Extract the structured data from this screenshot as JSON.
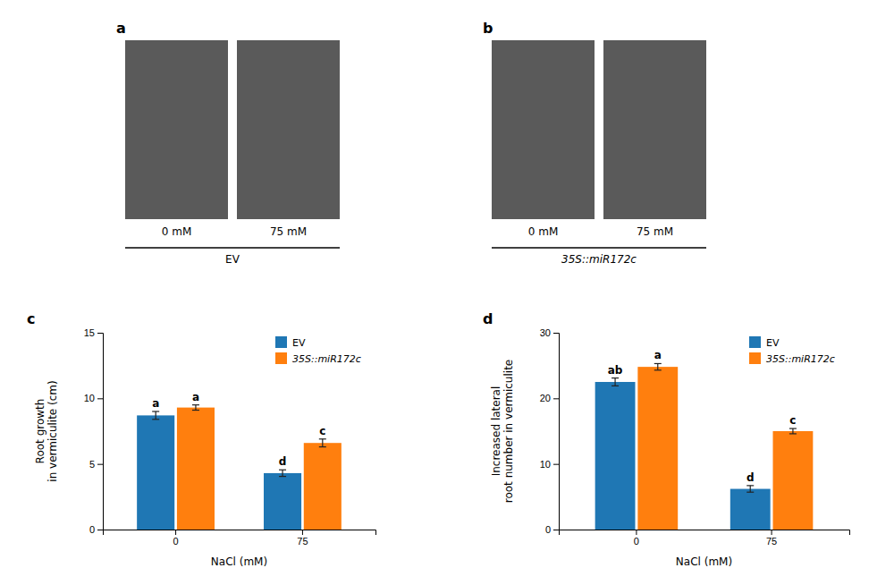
{
  "photo_panels": [
    {
      "label": "a",
      "photo_labels": [
        "0 mM",
        "75 mM"
      ],
      "group_label": "EV"
    },
    {
      "label": "b",
      "photo_labels": [
        "0 mM",
        "75 mM"
      ],
      "group_label": "35S::miR172c"
    }
  ],
  "chart_data": [
    {
      "type": "bar",
      "title": "c",
      "x_label": "NaCl (mM)",
      "y_label": "Root growth\nin vermiculite (cm)",
      "categories": [
        "0",
        "75"
      ],
      "series": [
        {
          "name": "EV",
          "values": [
            8.7,
            4.3
          ],
          "errors": [
            0.3,
            0.25
          ],
          "annotations": [
            "a",
            "d"
          ]
        },
        {
          "name": "35S::miR172c",
          "values": [
            9.3,
            6.6
          ],
          "errors": [
            0.2,
            0.3
          ],
          "annotations": [
            "a",
            "c"
          ]
        }
      ],
      "ylim": [
        0,
        15
      ],
      "yticks": [
        0,
        5,
        10,
        15
      ],
      "grid": false,
      "legend": "upper right"
    },
    {
      "type": "bar",
      "title": "d",
      "x_label": "NaCl (mM)",
      "y_label": "Increased lateral\nroot number in vermiculite",
      "categories": [
        "0",
        "75"
      ],
      "series": [
        {
          "name": "EV",
          "values": [
            22.5,
            6.2
          ],
          "errors": [
            0.6,
            0.5
          ],
          "annotations": [
            "ab",
            "d"
          ]
        },
        {
          "name": "35S::miR172c",
          "values": [
            24.8,
            15.0
          ],
          "errors": [
            0.5,
            0.4
          ],
          "annotations": [
            "a",
            "c"
          ]
        }
      ],
      "ylim": [
        0,
        30
      ],
      "yticks": [
        0,
        10,
        20,
        30
      ],
      "grid": false,
      "legend": "upper right"
    }
  ]
}
